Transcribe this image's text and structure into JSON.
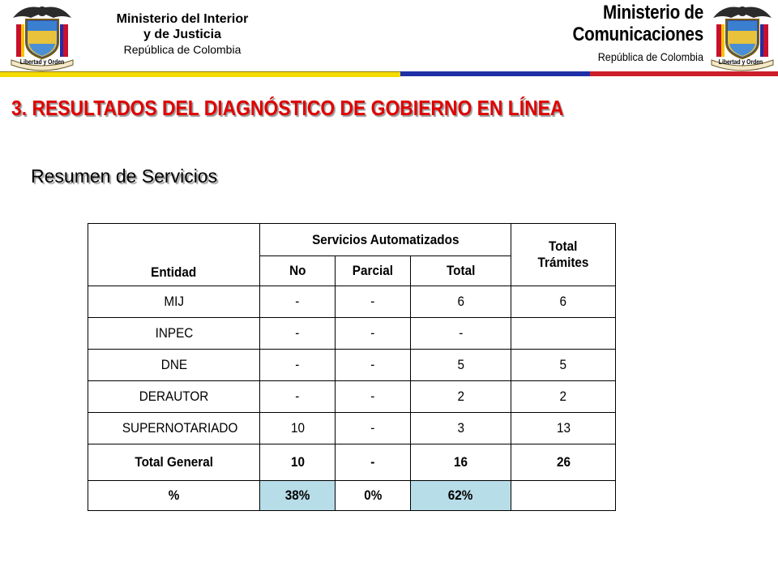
{
  "header": {
    "left": {
      "line1": "Ministerio del Interior",
      "line2": "y de Justicia",
      "line3": "República de Colombia",
      "crest_caption": "Libertad y Orden"
    },
    "right": {
      "line1": "Ministerio de",
      "line2": "Comunicaciones",
      "line3": "República de Colombia",
      "crest_caption": "Libertad y Orden"
    },
    "colors": {
      "yellow": "#f5dc00",
      "blue": "#1f2fa6",
      "red": "#cc1f2a"
    }
  },
  "section_title": "3. RESULTADOS DEL DIAGNÓSTICO DE GOBIERNO EN LÍNEA",
  "subtitle": "Resumen de Servicios",
  "table": {
    "headers": {
      "entidad": "Entidad",
      "group": "Servicios Automatizados",
      "no": "No",
      "parcial": "Parcial",
      "total": "Total",
      "total_tramites_1": "Total",
      "total_tramites_2": "Trámites"
    },
    "rows": [
      {
        "entidad": "MIJ",
        "no": "-",
        "parcial": "-",
        "total": "6",
        "tramites": "6"
      },
      {
        "entidad": "INPEC",
        "no": "-",
        "parcial": "-",
        "total": "-",
        "tramites": ""
      },
      {
        "entidad": "DNE",
        "no": "-",
        "parcial": "-",
        "total": "5",
        "tramites": "5"
      },
      {
        "entidad": "DERAUTOR",
        "no": "-",
        "parcial": "-",
        "total": "2",
        "tramites": "2"
      },
      {
        "entidad": "SUPERNOTARIADO",
        "no": "10",
        "parcial": "-",
        "total": "3",
        "tramites": "13"
      }
    ],
    "total_general": {
      "label": "Total General",
      "no": "10",
      "parcial": "-",
      "total": "16",
      "tramites": "26"
    },
    "percent": {
      "label": "%",
      "no": "38%",
      "parcial": "0%",
      "total": "62%",
      "tramites": ""
    },
    "highlight_color": "#b7dde8"
  }
}
